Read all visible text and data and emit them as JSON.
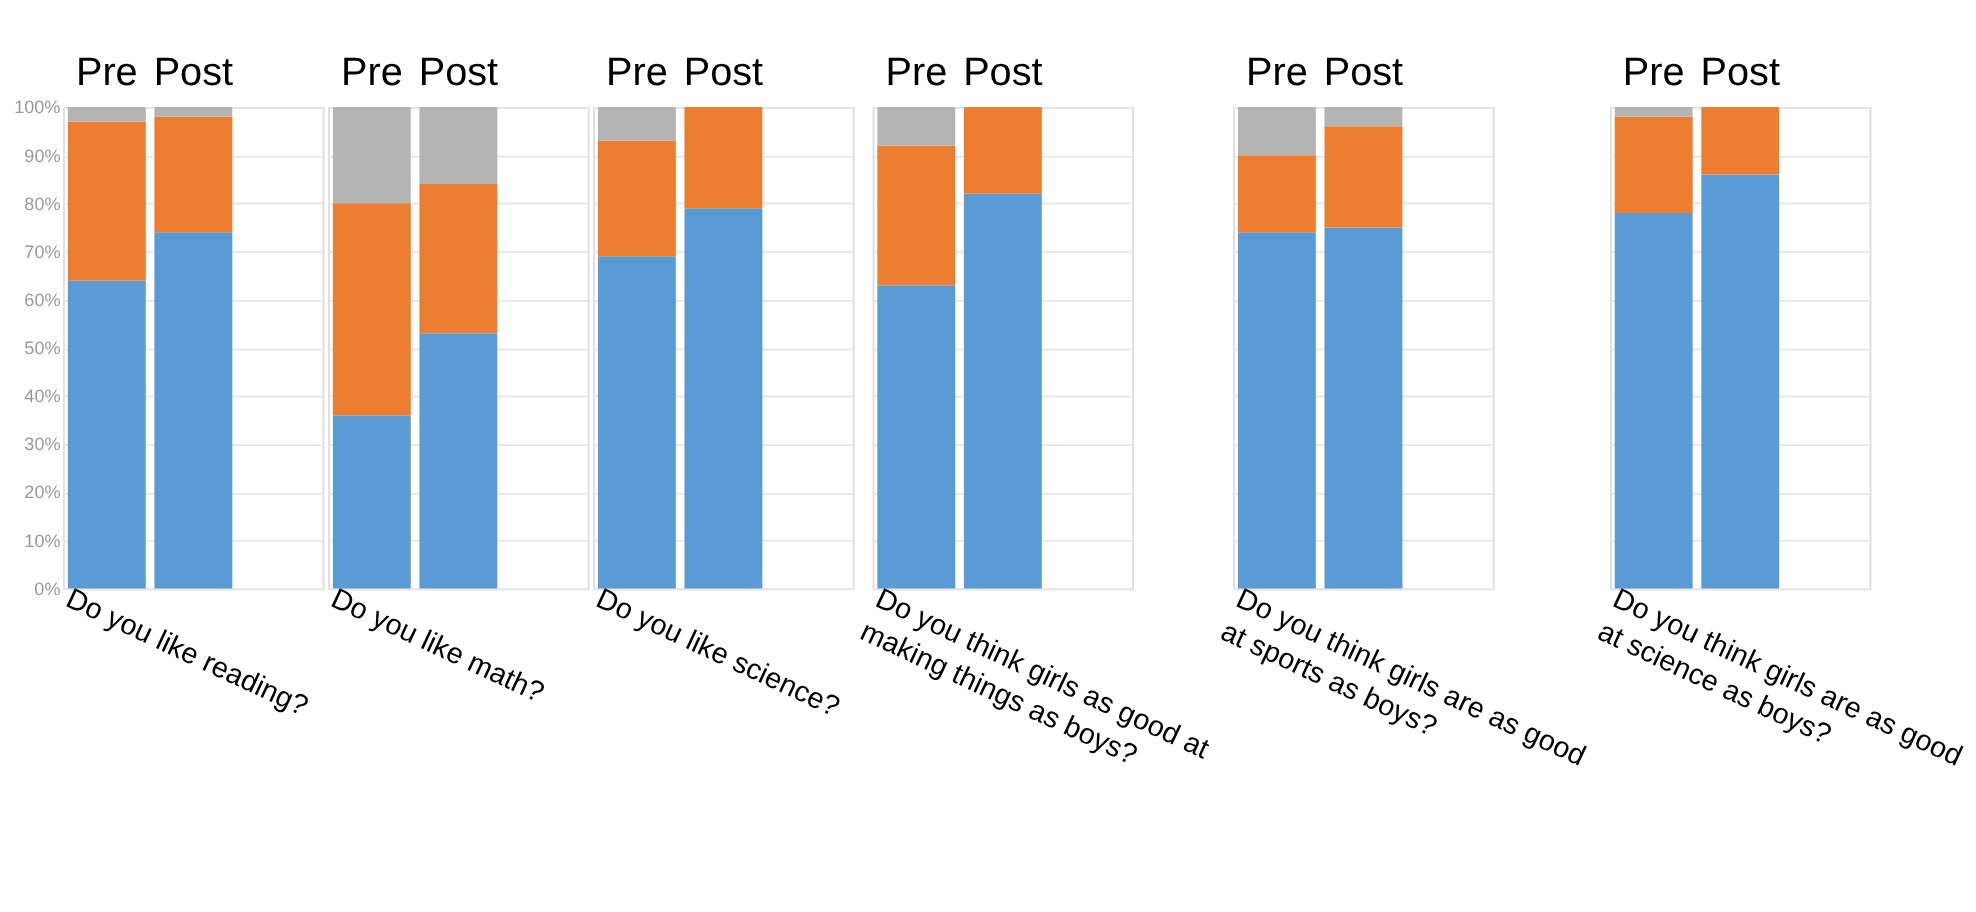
{
  "chart_data": [
    {
      "type": "bar",
      "stacked": true,
      "categories": [
        "Pre",
        "Post"
      ],
      "xlabel": "Do you like reading?",
      "series": [
        {
          "color": "#5b9bd5",
          "values": [
            64,
            74
          ]
        },
        {
          "color": "#ed7d31",
          "values": [
            33,
            24
          ]
        },
        {
          "color": "#b4b4b4",
          "values": [
            3,
            2
          ]
        }
      ],
      "ylim": [
        0,
        100
      ],
      "yticks": [
        {
          "value": 0,
          "label": "0%"
        },
        {
          "value": 10,
          "label": "10%"
        },
        {
          "value": 20,
          "label": "20%"
        },
        {
          "value": 30,
          "label": "30%"
        },
        {
          "value": 40,
          "label": "40%"
        },
        {
          "value": 50,
          "label": "50%"
        },
        {
          "value": 60,
          "label": "60%"
        },
        {
          "value": 70,
          "label": "70%"
        },
        {
          "value": 80,
          "label": "80%"
        },
        {
          "value": 90,
          "label": "90%"
        },
        {
          "value": 100,
          "label": "100%"
        }
      ],
      "grid": "y"
    },
    {
      "type": "bar",
      "stacked": true,
      "categories": [
        "Pre",
        "Post"
      ],
      "xlabel": "Do you like math?",
      "series": [
        {
          "color": "#5b9bd5",
          "values": [
            36,
            53
          ]
        },
        {
          "color": "#ed7d31",
          "values": [
            44,
            31
          ]
        },
        {
          "color": "#b4b4b4",
          "values": [
            20,
            16
          ]
        }
      ],
      "ylim": [
        0,
        100
      ],
      "yticks": [
        0,
        10,
        20,
        30,
        40,
        50,
        60,
        70,
        80,
        90,
        100
      ],
      "grid": "y",
      "tick_labels": "x"
    },
    {
      "type": "bar",
      "stacked": true,
      "categories": [
        "Pre",
        "Post"
      ],
      "xlabel": "Do you like science?",
      "series": [
        {
          "color": "#5b9bd5",
          "values": [
            69,
            79
          ]
        },
        {
          "color": "#ed7d31",
          "values": [
            24,
            21
          ]
        },
        {
          "color": "#b4b4b4",
          "values": [
            7,
            0
          ]
        }
      ],
      "ylim": [
        0,
        100
      ],
      "yticks": [
        0,
        10,
        20,
        30,
        40,
        50,
        60,
        70,
        80,
        90,
        100
      ],
      "grid": "y",
      "tick_labels": "x"
    },
    {
      "type": "bar",
      "stacked": true,
      "categories": [
        "Pre",
        "Post"
      ],
      "xlabel": "Do you think girls as good at making things as boys?",
      "series": [
        {
          "color": "#5b9bd5",
          "values": [
            63,
            82
          ]
        },
        {
          "color": "#ed7d31",
          "values": [
            29,
            18
          ]
        },
        {
          "color": "#b4b4b4",
          "values": [
            8,
            0
          ]
        }
      ],
      "ylim": [
        0,
        100
      ],
      "yticks": [
        0,
        10,
        20,
        30,
        40,
        50,
        60,
        70,
        80,
        90,
        100
      ],
      "grid": "y",
      "tick_labels": "x"
    },
    {
      "type": "bar",
      "stacked": true,
      "categories": [
        "Pre",
        "Post"
      ],
      "xlabel": "Do you think girls are as good at sports as boys?",
      "series": [
        {
          "color": "#5b9bd5",
          "values": [
            74,
            75
          ]
        },
        {
          "color": "#ed7d31",
          "values": [
            16,
            21
          ]
        },
        {
          "color": "#b4b4b4",
          "values": [
            10,
            4
          ]
        }
      ],
      "ylim": [
        0,
        100
      ],
      "yticks": [
        0,
        10,
        20,
        30,
        40,
        50,
        60,
        70,
        80,
        90,
        100
      ],
      "grid": "y",
      "tick_labels": "x"
    },
    {
      "type": "bar",
      "stacked": true,
      "categories": [
        "Pre",
        "Post"
      ],
      "xlabel": "Do you think girls are as good at science as boys?",
      "series": [
        {
          "color": "#5b9bd5",
          "values": [
            78,
            86
          ]
        },
        {
          "color": "#ed7d31",
          "values": [
            20,
            14
          ]
        },
        {
          "color": "#b4b4b4",
          "values": [
            2,
            0
          ]
        }
      ],
      "ylim": [
        0,
        100
      ],
      "yticks": [
        0,
        10,
        20,
        30,
        40,
        50,
        60,
        70,
        80,
        90,
        100
      ],
      "grid": "y",
      "tick_labels": "x"
    }
  ]
}
